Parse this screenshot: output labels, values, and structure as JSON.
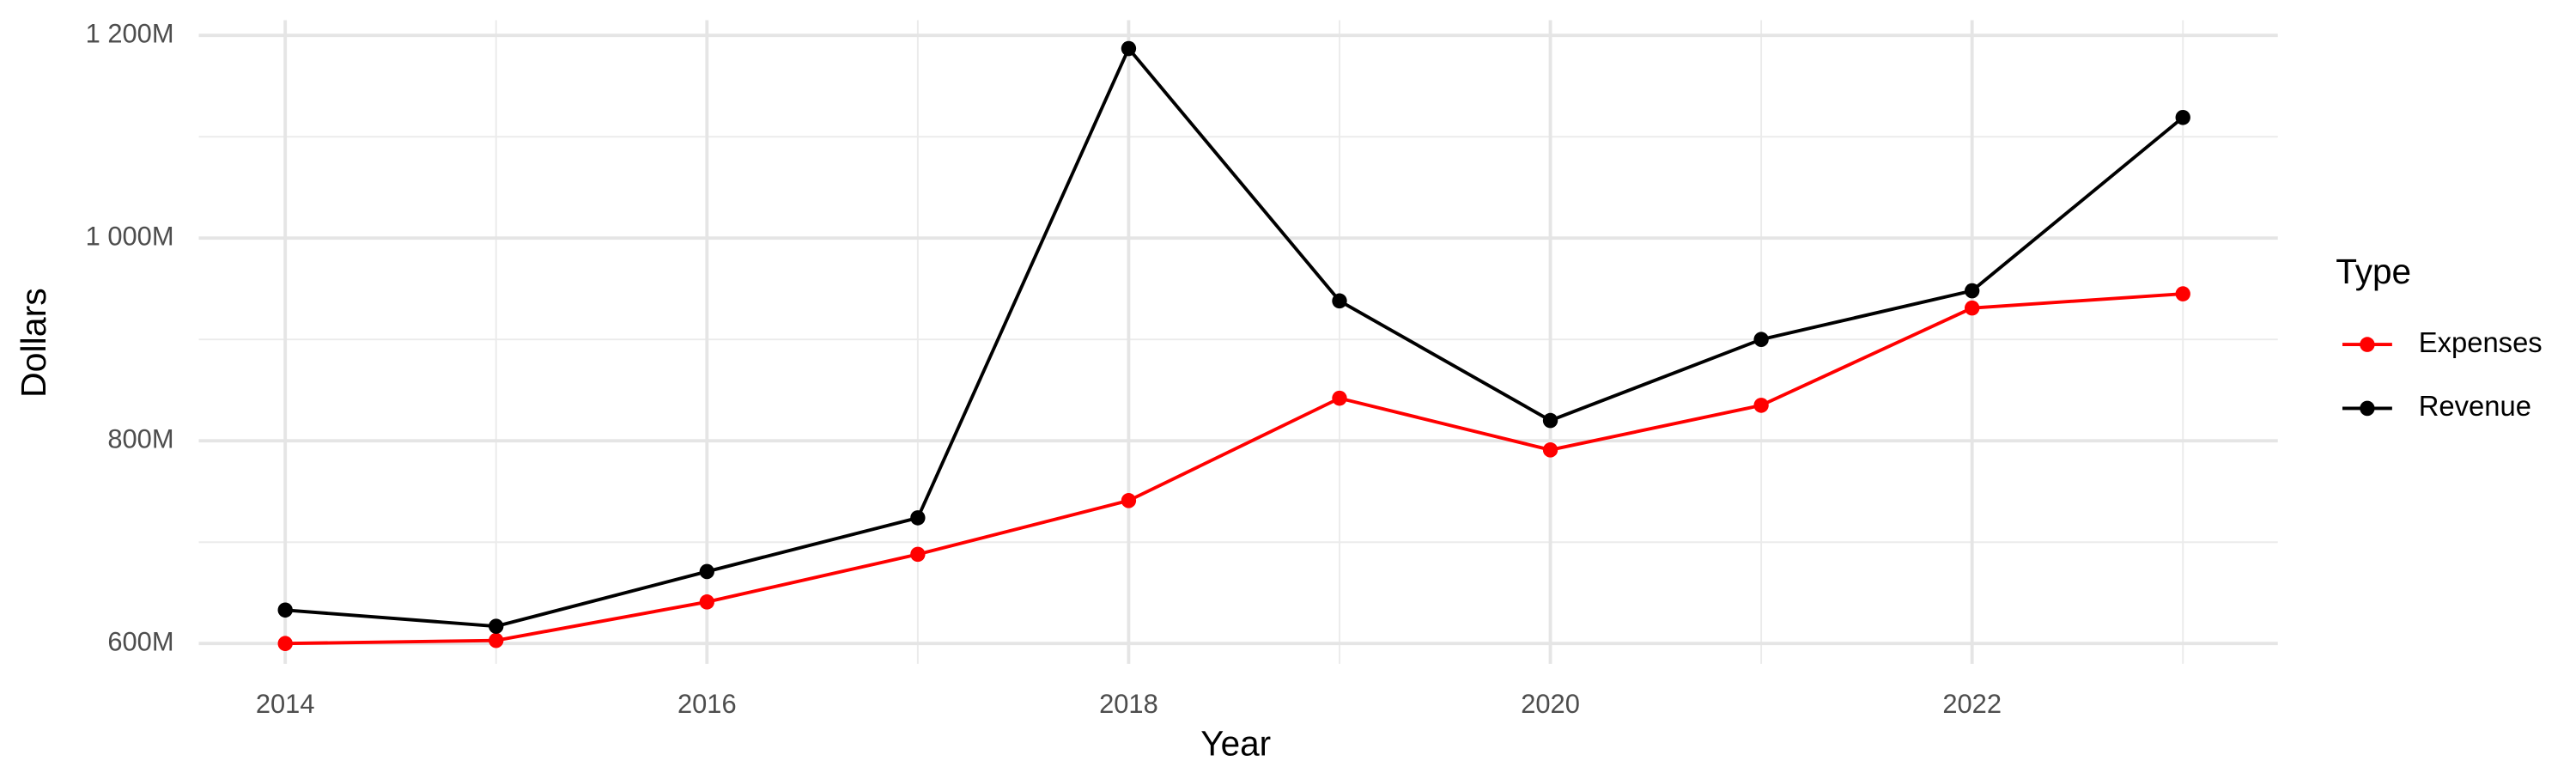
{
  "chart_data": {
    "type": "line",
    "x_label": "Year",
    "y_label": "Dollars",
    "legend_title": "Type",
    "legend_position": "right",
    "x": [
      2014,
      2015,
      2016,
      2017,
      2018,
      2019,
      2020,
      2021,
      2022,
      2023
    ],
    "series": [
      {
        "name": "Expenses",
        "color": "#ff0000",
        "values": [
          600,
          603,
          641,
          688,
          741,
          842,
          791,
          835,
          931,
          945
        ]
      },
      {
        "name": "Revenue",
        "color": "#000000",
        "values": [
          633,
          617,
          671,
          724,
          1187,
          938,
          820,
          900,
          948,
          1119
        ]
      }
    ],
    "xlim": [
      2013.59,
      2023.45
    ],
    "xticks": [
      2014,
      2016,
      2018,
      2020,
      2022
    ],
    "minor_xticks": [
      2015,
      2017,
      2019,
      2021,
      2023
    ],
    "ylim": [
      580,
      1215
    ],
    "yticks": [
      {
        "value": 600,
        "label": "600M"
      },
      {
        "value": 800,
        "label": "800M"
      },
      {
        "value": 1000,
        "label": "1 000M"
      },
      {
        "value": 1200,
        "label": "1 200M"
      }
    ],
    "minor_yticks": [
      700,
      900,
      1100
    ],
    "grid": true
  }
}
